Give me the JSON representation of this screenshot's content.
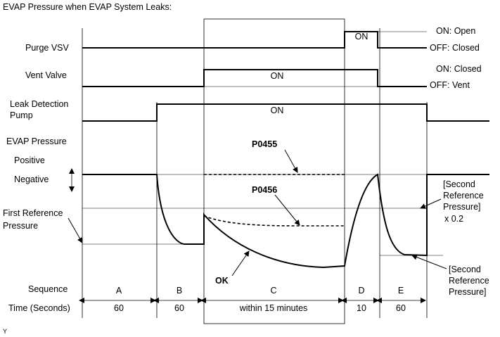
{
  "title": "EVAP Pressure when EVAP System Leaks:",
  "rows": {
    "purge_vsv": "Purge VSV",
    "vent_valve": "Vent Valve",
    "leak_pump_line1": "Leak Detection",
    "leak_pump_line2": "Pump",
    "evap_pressure": "EVAP Pressure",
    "positive": "Positive",
    "negative": "Negative",
    "first_ref_line1": "First Reference",
    "first_ref_line2": "Pressure",
    "sequence": "Sequence",
    "time": "Time (Seconds)"
  },
  "states": {
    "purge_on": "ON: Open",
    "purge_off": "OFF: Closed",
    "vent_on": "ON: Closed",
    "vent_off": "OFF: Vent",
    "on": "ON"
  },
  "annotations": {
    "p0455": "P0455",
    "p0456": "P0456",
    "ok": "OK",
    "second_ref_x02_line1": "[Second",
    "second_ref_x02_line2": "Reference",
    "second_ref_x02_line3": "Pressure]",
    "second_ref_x02_line4": "x 0.2",
    "second_ref_line1": "[Second",
    "second_ref_line2": "Reference",
    "second_ref_line3": "Pressure]"
  },
  "sequence": [
    {
      "label": "A",
      "time": "60"
    },
    {
      "label": "B",
      "time": "60"
    },
    {
      "label": "C",
      "time": "within 15 minutes"
    },
    {
      "label": "D",
      "time": "10"
    },
    {
      "label": "E",
      "time": "60"
    }
  ],
  "footer": "Y"
}
